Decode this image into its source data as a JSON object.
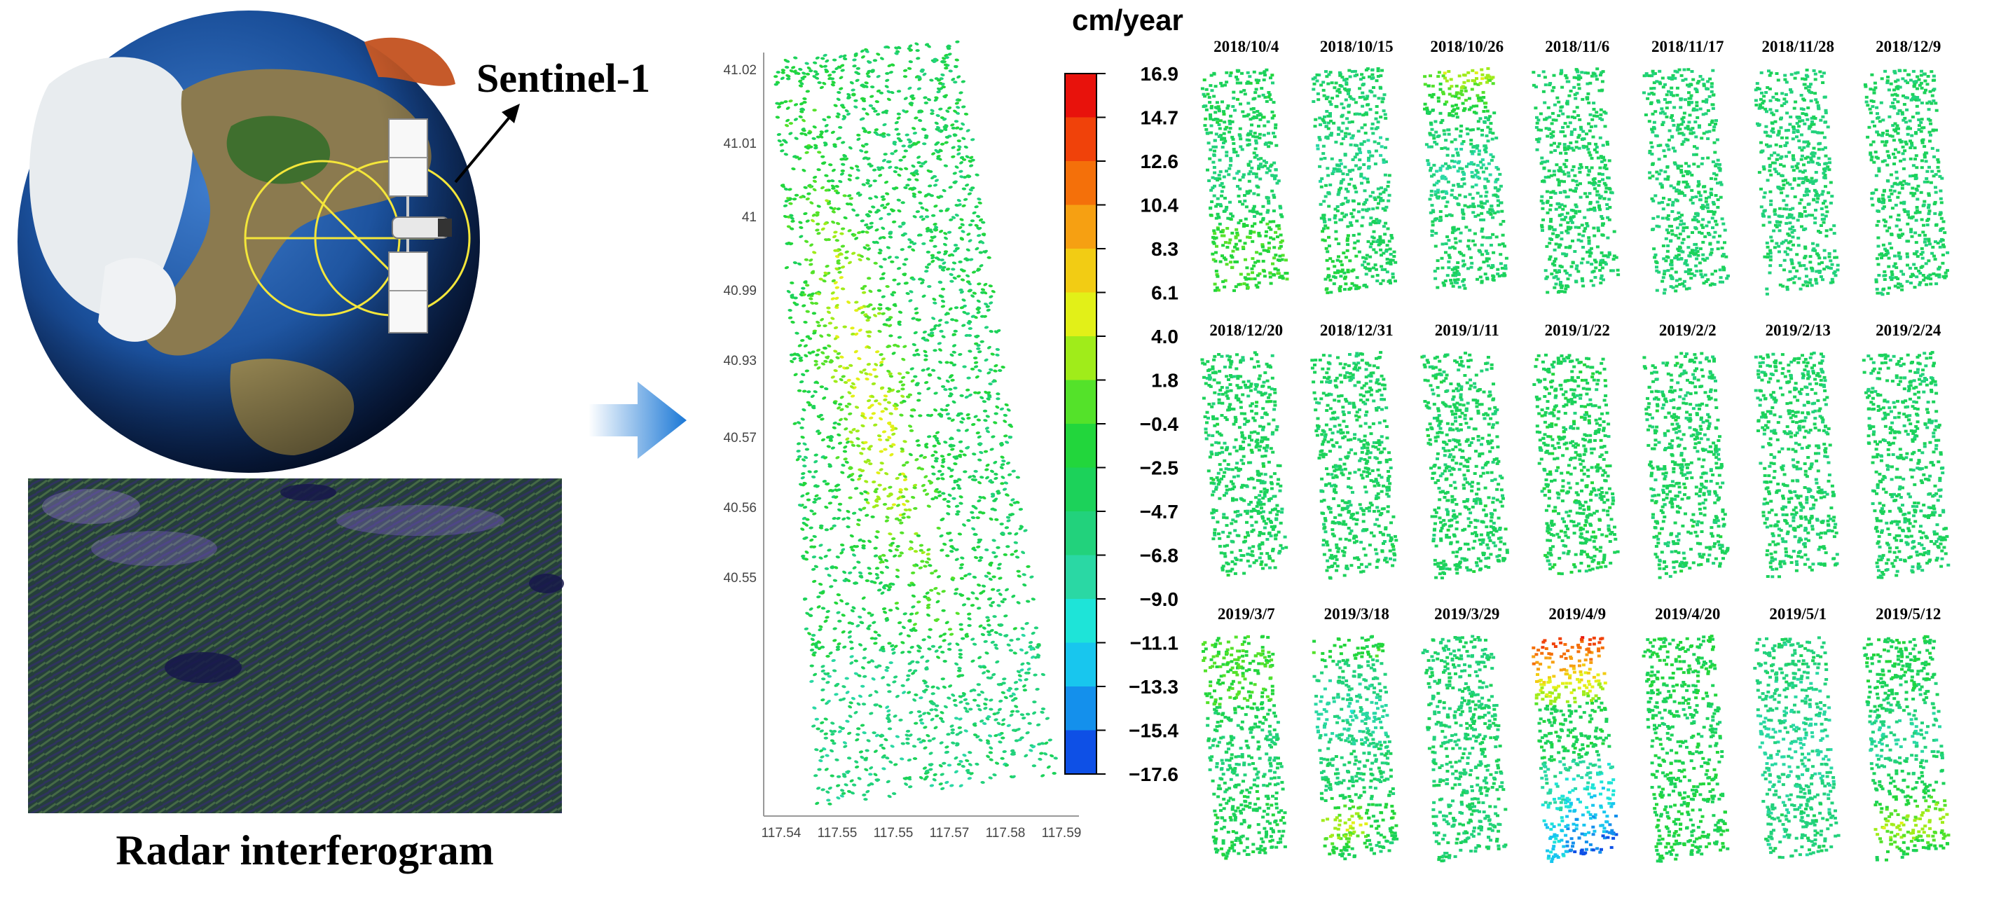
{
  "satellite_label": "Sentinel-1",
  "interferogram_caption": "Radar interferogram",
  "map": {
    "y_ticks": [
      "41.02",
      "41.01",
      "41",
      "40.99",
      "40.93",
      "40.57",
      "40.56",
      "40.55"
    ],
    "x_ticks": [
      "117.54",
      "117.55",
      "117.55",
      "117.57",
      "117.58",
      "117.59"
    ]
  },
  "colorbar": {
    "title": "cm/year",
    "ticks": [
      "16.9",
      "14.7",
      "12.6",
      "10.4",
      "8.3",
      "6.1",
      "4.0",
      "1.8",
      "−0.4",
      "−2.5",
      "−4.7",
      "−6.8",
      "−9.0",
      "−11.1",
      "−13.3",
      "−15.4",
      "−17.6"
    ],
    "colors": [
      "#e8120c",
      "#f0420a",
      "#f4700a",
      "#f6a012",
      "#f2cc14",
      "#e2f018",
      "#a0ec1a",
      "#54e22a",
      "#22d63c",
      "#1cd25a",
      "#22d27c",
      "#2ad8a4",
      "#1ee4d8",
      "#18c6ee",
      "#1490ec",
      "#0e50e6",
      "#0a18e0"
    ]
  },
  "panels": {
    "dates": [
      "2018/10/4",
      "2018/10/15",
      "2018/10/26",
      "2018/11/6",
      "2018/11/17",
      "2018/11/28",
      "2018/12/9",
      "2018/12/20",
      "2018/12/31",
      "2019/1/11",
      "2019/1/22",
      "2019/2/2",
      "2019/2/13",
      "2019/2/24",
      "2019/3/7",
      "2019/3/18",
      "2019/3/29",
      "2019/4/9",
      "2019/4/20",
      "2019/5/1",
      "2019/5/12"
    ]
  }
}
